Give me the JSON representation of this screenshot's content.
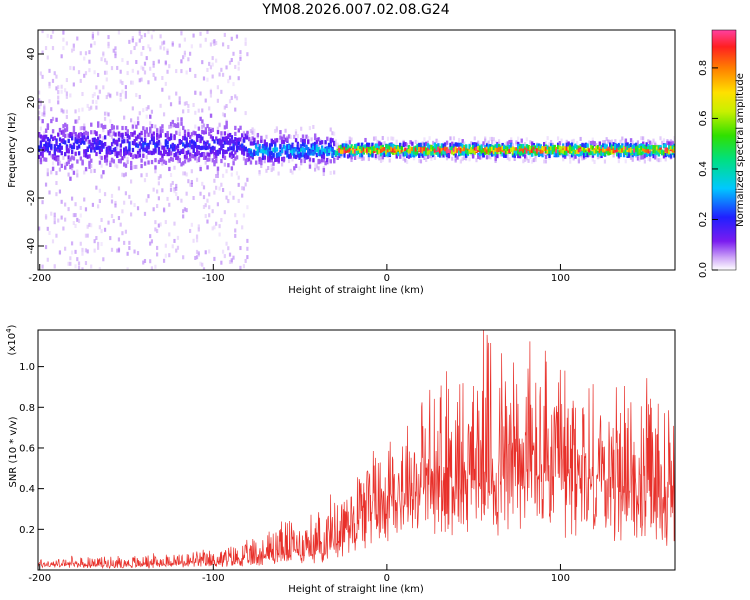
{
  "title": "YM08.2026.007.02.08.G24",
  "chart_data": [
    {
      "type": "heatmap",
      "xlabel": "Height of straight line (km)",
      "ylabel": "Frequency (Hz)",
      "xlim": [
        -201,
        166
      ],
      "ylim": [
        -50,
        50
      ],
      "xticks": [
        -200,
        -100,
        0,
        100
      ],
      "yticks": [
        -40,
        -20,
        0,
        20,
        40
      ],
      "colorbar": {
        "label": "Normalized spectral amplitude",
        "range": [
          0,
          0.95
        ],
        "ticks": [
          0.0,
          0.2,
          0.4,
          0.6,
          0.8
        ],
        "tick_labels": [
          "0.0",
          "0.2",
          "0.4",
          "0.6",
          "0.8"
        ],
        "colormap": "rainbow"
      },
      "bands": [
        {
          "x_start": -201,
          "x_end": -80,
          "center_hz": 2,
          "halfwidth_hz": 8,
          "peak_amplitude": 0.25,
          "scatter_hz": 50
        },
        {
          "x_start": -80,
          "x_end": -30,
          "center_hz": 0,
          "halfwidth_hz": 5,
          "peak_amplitude": 0.4,
          "scatter_hz": 10
        },
        {
          "x_start": -30,
          "x_end": 166,
          "center_hz": 0,
          "halfwidth_hz": 2.5,
          "peak_amplitude": 0.95,
          "scatter_hz": 5
        }
      ]
    },
    {
      "type": "line",
      "xlabel": "Height of straight line (km)",
      "ylabel": "SNR (10 * v/v)",
      "scale_label": "(x10",
      "scale_exponent": "4",
      "scale_close": ")",
      "xlim": [
        -201,
        166
      ],
      "ylim": [
        0,
        1.18
      ],
      "xticks": [
        -200,
        -100,
        0,
        100
      ],
      "yticks": [
        0.2,
        0.4,
        0.6,
        0.8,
        1.0
      ],
      "color": "#e8302a",
      "envelope": {
        "x": [
          -201,
          -150,
          -100,
          -80,
          -60,
          -40,
          -30,
          -20,
          -10,
          0,
          20,
          40,
          60,
          80,
          100,
          120,
          140,
          166
        ],
        "baseline": [
          0.02,
          0.02,
          0.03,
          0.04,
          0.06,
          0.08,
          0.12,
          0.2,
          0.26,
          0.3,
          0.34,
          0.36,
          0.38,
          0.38,
          0.36,
          0.34,
          0.3,
          0.28
        ],
        "peak": [
          0.06,
          0.07,
          0.1,
          0.14,
          0.26,
          0.28,
          0.38,
          0.5,
          0.62,
          0.68,
          0.85,
          1.0,
          1.15,
          1.15,
          1.0,
          0.92,
          0.9,
          0.85
        ]
      }
    }
  ]
}
